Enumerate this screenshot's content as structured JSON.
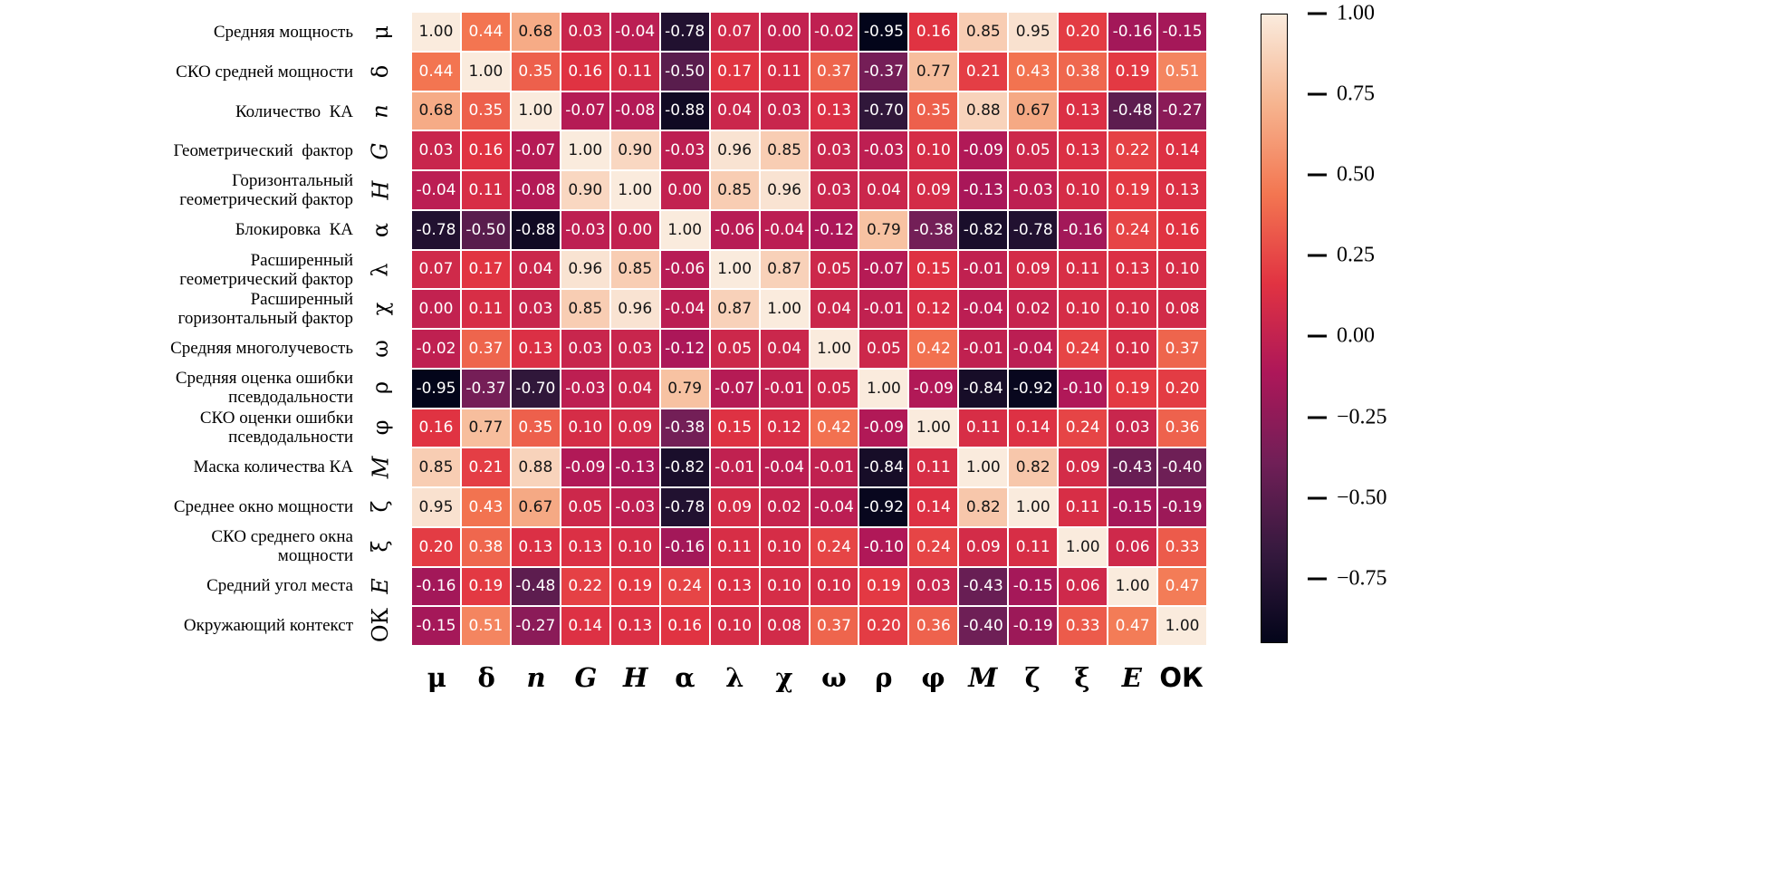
{
  "chart_data": {
    "type": "heatmap",
    "title": "",
    "rows": [
      {
        "label": "Средняя мощность",
        "symbol": "μ"
      },
      {
        "label": "СКО средней мощности",
        "symbol": "δ"
      },
      {
        "label": "Количество  КА",
        "symbol": "n"
      },
      {
        "label": "Геометрический  фактор",
        "symbol": "G"
      },
      {
        "label": "Горизонтальный\nгеометрический фактор",
        "symbol": "H"
      },
      {
        "label": "Блокировка  КА",
        "symbol": "α"
      },
      {
        "label": "Расширенный\nгеометрический фактор",
        "symbol": "λ"
      },
      {
        "label": "Расширенный\nгоризонтальный фактор",
        "symbol": "χ"
      },
      {
        "label": "Средняя многолучевость",
        "symbol": "ω"
      },
      {
        "label": "Средняя оценка ошибки\nпсевдодальности",
        "symbol": "ρ"
      },
      {
        "label": "СКО оценки ошибки\nпсевдодальности",
        "symbol": "φ"
      },
      {
        "label": "Маска количества КА",
        "symbol": "M"
      },
      {
        "label": "Среднее окно мощности",
        "symbol": "ζ"
      },
      {
        "label": "СКО среднего окна\nмощности",
        "symbol": "ξ"
      },
      {
        "label": "Средний угол места",
        "symbol": "E"
      },
      {
        "label": "Окружающий контекст",
        "symbol": "ОК"
      }
    ],
    "columns": [
      "μ",
      "δ",
      "n",
      "G",
      "H",
      "α",
      "λ",
      "χ",
      "ω",
      "ρ",
      "φ",
      "M",
      "ζ",
      "ξ",
      "E",
      "ОК"
    ],
    "matrix": [
      [
        1.0,
        0.44,
        0.68,
        0.03,
        -0.04,
        -0.78,
        0.07,
        0.0,
        -0.02,
        -0.95,
        0.16,
        0.85,
        0.95,
        0.2,
        -0.16,
        -0.15
      ],
      [
        0.44,
        1.0,
        0.35,
        0.16,
        0.11,
        -0.5,
        0.17,
        0.11,
        0.37,
        -0.37,
        0.77,
        0.21,
        0.43,
        0.38,
        0.19,
        0.51
      ],
      [
        0.68,
        0.35,
        1.0,
        -0.07,
        -0.08,
        -0.88,
        0.04,
        0.03,
        0.13,
        -0.7,
        0.35,
        0.88,
        0.67,
        0.13,
        -0.48,
        -0.27
      ],
      [
        0.03,
        0.16,
        -0.07,
        1.0,
        0.9,
        -0.03,
        0.96,
        0.85,
        0.03,
        -0.03,
        0.1,
        -0.09,
        0.05,
        0.13,
        0.22,
        0.14
      ],
      [
        -0.04,
        0.11,
        -0.08,
        0.9,
        1.0,
        0.0,
        0.85,
        0.96,
        0.03,
        0.04,
        0.09,
        -0.13,
        -0.03,
        0.1,
        0.19,
        0.13
      ],
      [
        -0.78,
        -0.5,
        -0.88,
        -0.03,
        0.0,
        1.0,
        -0.06,
        -0.04,
        -0.12,
        0.79,
        -0.38,
        -0.82,
        -0.78,
        -0.16,
        0.24,
        0.16
      ],
      [
        0.07,
        0.17,
        0.04,
        0.96,
        0.85,
        -0.06,
        1.0,
        0.87,
        0.05,
        -0.07,
        0.15,
        -0.01,
        0.09,
        0.11,
        0.13,
        0.1
      ],
      [
        0.0,
        0.11,
        0.03,
        0.85,
        0.96,
        -0.04,
        0.87,
        1.0,
        0.04,
        -0.01,
        0.12,
        -0.04,
        0.02,
        0.1,
        0.1,
        0.08
      ],
      [
        -0.02,
        0.37,
        0.13,
        0.03,
        0.03,
        -0.12,
        0.05,
        0.04,
        1.0,
        0.05,
        0.42,
        -0.01,
        -0.04,
        0.24,
        0.1,
        0.37
      ],
      [
        -0.95,
        -0.37,
        -0.7,
        -0.03,
        0.04,
        0.79,
        -0.07,
        -0.01,
        0.05,
        1.0,
        -0.09,
        -0.84,
        -0.92,
        -0.1,
        0.19,
        0.2
      ],
      [
        0.16,
        0.77,
        0.35,
        0.1,
        0.09,
        -0.38,
        0.15,
        0.12,
        0.42,
        -0.09,
        1.0,
        0.11,
        0.14,
        0.24,
        0.03,
        0.36
      ],
      [
        0.85,
        0.21,
        0.88,
        -0.09,
        -0.13,
        -0.82,
        -0.01,
        -0.04,
        -0.01,
        -0.84,
        0.11,
        1.0,
        0.82,
        0.09,
        -0.43,
        -0.4
      ],
      [
        0.95,
        0.43,
        0.67,
        0.05,
        -0.03,
        -0.78,
        0.09,
        0.02,
        -0.04,
        -0.92,
        0.14,
        0.82,
        1.0,
        0.11,
        -0.15,
        -0.19
      ],
      [
        0.2,
        0.38,
        0.13,
        0.13,
        0.1,
        -0.16,
        0.11,
        0.1,
        0.24,
        -0.1,
        0.24,
        0.09,
        0.11,
        1.0,
        0.06,
        0.33
      ],
      [
        -0.16,
        0.19,
        -0.48,
        0.22,
        0.19,
        0.24,
        0.13,
        0.1,
        0.1,
        0.19,
        0.03,
        -0.43,
        -0.15,
        0.06,
        1.0,
        0.47
      ],
      [
        -0.15,
        0.51,
        -0.27,
        0.14,
        0.13,
        0.16,
        0.1,
        0.08,
        0.37,
        0.2,
        0.36,
        -0.4,
        -0.19,
        0.33,
        0.47,
        1.0
      ]
    ],
    "vmin": -0.95,
    "vmax": 1.0,
    "value_format": "two-decimals",
    "grid_line_color": "#ffffff",
    "annotation_colors": {
      "dark_text": "#151515",
      "light_text": "#ffffff",
      "luminance_threshold": 0.408
    },
    "colormap": {
      "name": "rocket",
      "stops": [
        {
          "t": 0.0,
          "c": "#03051A"
        },
        {
          "t": 0.143,
          "c": "#35193E"
        },
        {
          "t": 0.286,
          "c": "#701F57"
        },
        {
          "t": 0.429,
          "c": "#AD1759"
        },
        {
          "t": 0.571,
          "c": "#E13342"
        },
        {
          "t": 0.714,
          "c": "#F37651"
        },
        {
          "t": 0.857,
          "c": "#F6B48F"
        },
        {
          "t": 1.0,
          "c": "#FAEBDD"
        }
      ]
    },
    "colorbar": {
      "position": "right",
      "tick_values": [
        1.0,
        0.75,
        0.5,
        0.25,
        0.0,
        -0.25,
        -0.5,
        -0.75
      ],
      "tick_labels": [
        "1.00",
        "0.75",
        "0.50",
        "0.25",
        "0.00",
        "−0.25",
        "−0.50",
        "−0.75"
      ]
    }
  }
}
